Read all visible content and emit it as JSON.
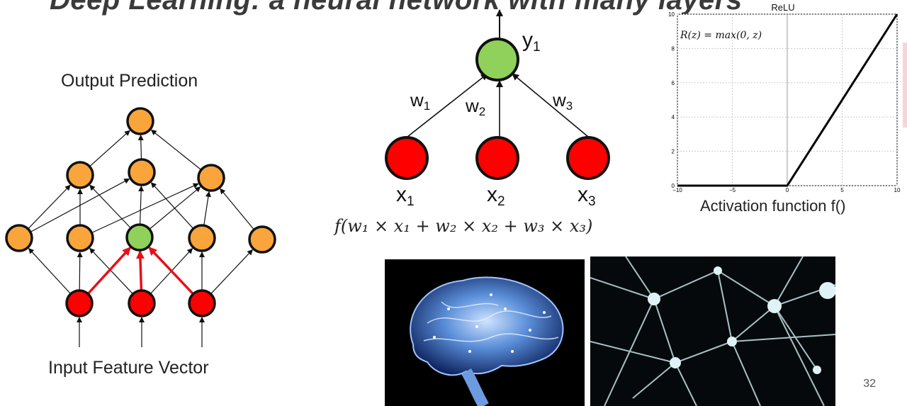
{
  "slide": {
    "title": "Deep Learning: a neural network with many layers",
    "page_number": "32"
  },
  "network": {
    "top_label": "Output Prediction",
    "bottom_label": "Input Feature Vector",
    "colors": {
      "hidden": "#f9a53b",
      "active": "#8fd15a",
      "input": "#ff0000",
      "edge_highlight": "#e8101a"
    }
  },
  "neuron": {
    "output_label": "y",
    "output_sub": "1",
    "inputs": [
      {
        "label": "x",
        "sub": "1"
      },
      {
        "label": "x",
        "sub": "2"
      },
      {
        "label": "x",
        "sub": "3"
      }
    ],
    "weights": [
      {
        "label": "w",
        "sub": "1"
      },
      {
        "label": "w",
        "sub": "2"
      },
      {
        "label": "w",
        "sub": "3"
      }
    ],
    "formula": "f(w₁ × x₁ + w₂ × x₂ + w₃ × x₃)"
  },
  "relu": {
    "title": "ReLU",
    "formula": "R(z) = max(0,  z)",
    "xlabel": "Activation function f()",
    "x_ticks": [
      "−10",
      "−5",
      "0",
      "5",
      "10"
    ],
    "y_ticks": [
      "0",
      "2",
      "4",
      "6",
      "8",
      "10"
    ]
  },
  "chart_data": {
    "type": "line",
    "title": "ReLU",
    "xlabel": "Activation function f()",
    "ylabel": "",
    "xlim": [
      -10,
      10
    ],
    "ylim": [
      0,
      10
    ],
    "grid": true,
    "series": [
      {
        "x": [
          -10,
          0,
          10
        ],
        "y": [
          0,
          0,
          10
        ]
      }
    ]
  },
  "images": {
    "left_photo": "brain-illustration",
    "right_photo": "neuron-network-illustration"
  }
}
